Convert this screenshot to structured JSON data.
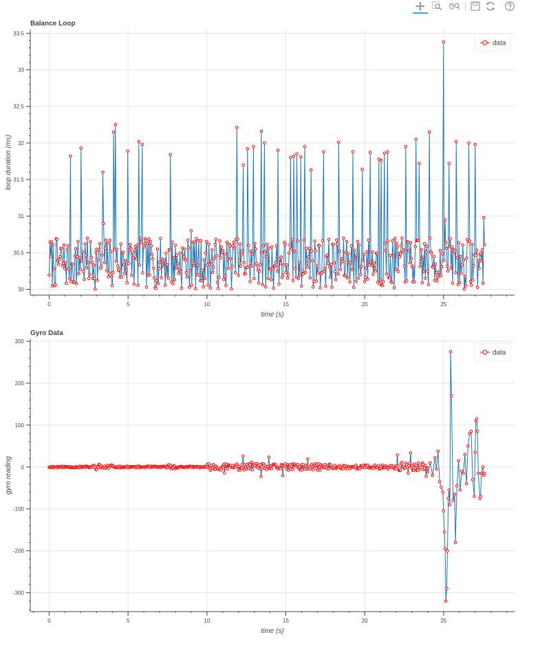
{
  "toolbar": {
    "tools": [
      {
        "name": "pan-tool",
        "label": "Pan",
        "active": true
      },
      {
        "name": "box-zoom-tool",
        "label": "Box Zoom",
        "active": false
      },
      {
        "name": "wheel-zoom-tool",
        "label": "Wheel Zoom",
        "active": false
      },
      {
        "name": "save-tool",
        "label": "Save",
        "active": false
      },
      {
        "name": "reset-tool",
        "label": "Reset",
        "active": false
      },
      {
        "name": "help-tool",
        "label": "Help",
        "active": false
      }
    ]
  },
  "colors": {
    "line": "#1f77b4",
    "marker": "#ff0000",
    "grid": "#e5e5e5",
    "axis": "#444444",
    "active_tool": "#26aae1"
  },
  "chart_data": [
    {
      "type": "line",
      "title": "Balance Loop",
      "xlabel": "time (s)",
      "ylabel": "loop duration (ms)",
      "xlim": [
        -1.2,
        29.5
      ],
      "ylim": [
        29.92,
        33.55
      ],
      "xticks": [
        0,
        5,
        10,
        15,
        20,
        25
      ],
      "yticks": [
        30,
        30.5,
        31,
        31.5,
        32,
        32.5,
        33,
        33.5
      ],
      "legend": {
        "label": "data",
        "position": "top-right"
      },
      "grid": true,
      "series": [
        {
          "name": "data",
          "generated": {
            "count": 560,
            "x_start": 0,
            "x_end": 27.6,
            "base_min": 30.0,
            "base_max": 30.7,
            "seed": 7
          }
        }
      ],
      "peaks": [
        {
          "x": 0.15,
          "y": 30.65
        },
        {
          "x": 1.35,
          "y": 31.82
        },
        {
          "x": 2.02,
          "y": 31.93
        },
        {
          "x": 3.4,
          "y": 31.6
        },
        {
          "x": 3.45,
          "y": 30.9
        },
        {
          "x": 4.08,
          "y": 32.15
        },
        {
          "x": 4.2,
          "y": 32.25
        },
        {
          "x": 4.98,
          "y": 31.89
        },
        {
          "x": 5.68,
          "y": 32.02
        },
        {
          "x": 5.9,
          "y": 31.98
        },
        {
          "x": 7.68,
          "y": 31.84
        },
        {
          "x": 9.0,
          "y": 30.8
        },
        {
          "x": 11.9,
          "y": 32.21
        },
        {
          "x": 12.3,
          "y": 31.7
        },
        {
          "x": 12.57,
          "y": 31.92
        },
        {
          "x": 12.95,
          "y": 31.95
        },
        {
          "x": 13.45,
          "y": 32.16
        },
        {
          "x": 13.65,
          "y": 32.0
        },
        {
          "x": 14.5,
          "y": 31.9
        },
        {
          "x": 15.3,
          "y": 31.8
        },
        {
          "x": 15.5,
          "y": 31.82
        },
        {
          "x": 15.7,
          "y": 31.85
        },
        {
          "x": 15.95,
          "y": 31.81
        },
        {
          "x": 16.2,
          "y": 31.95
        },
        {
          "x": 16.6,
          "y": 31.63
        },
        {
          "x": 17.4,
          "y": 31.88
        },
        {
          "x": 18.35,
          "y": 32.01
        },
        {
          "x": 19.25,
          "y": 31.88
        },
        {
          "x": 19.85,
          "y": 31.64
        },
        {
          "x": 20.35,
          "y": 31.87
        },
        {
          "x": 20.9,
          "y": 31.78
        },
        {
          "x": 21.05,
          "y": 31.76
        },
        {
          "x": 21.25,
          "y": 31.86
        },
        {
          "x": 21.45,
          "y": 31.88
        },
        {
          "x": 22.6,
          "y": 31.95
        },
        {
          "x": 23.25,
          "y": 32.05
        },
        {
          "x": 23.45,
          "y": 31.72
        },
        {
          "x": 24.1,
          "y": 32.15
        },
        {
          "x": 25.0,
          "y": 33.38
        },
        {
          "x": 25.1,
          "y": 30.95
        },
        {
          "x": 25.35,
          "y": 31.72
        },
        {
          "x": 25.8,
          "y": 32.02
        },
        {
          "x": 26.6,
          "y": 32.0
        },
        {
          "x": 27.0,
          "y": 31.98
        },
        {
          "x": 27.55,
          "y": 30.98
        }
      ]
    },
    {
      "type": "line",
      "title": "Gyro Data",
      "xlabel": "time (s)",
      "ylabel": "gyro reading",
      "xlim": [
        -1.2,
        29.5
      ],
      "ylim": [
        -345,
        305
      ],
      "xticks": [
        0,
        5,
        10,
        15,
        20,
        25
      ],
      "yticks": [
        -300,
        -200,
        -100,
        0,
        100,
        200,
        300
      ],
      "legend": {
        "label": "data",
        "position": "top-right"
      },
      "grid": true,
      "series": [
        {
          "name": "data",
          "generated": {
            "count": 560,
            "x_start": 0,
            "x_end": 27.6,
            "seed": 11
          }
        }
      ],
      "tail": [
        [
          24.0,
          -12
        ],
        [
          24.15,
          10
        ],
        [
          24.3,
          -20
        ],
        [
          24.45,
          22
        ],
        [
          24.55,
          -5
        ],
        [
          24.65,
          38
        ],
        [
          24.75,
          -35
        ],
        [
          24.85,
          -48
        ],
        [
          24.95,
          -60
        ],
        [
          25.0,
          -105
        ],
        [
          25.05,
          -155
        ],
        [
          25.1,
          -195
        ],
        [
          25.15,
          -320
        ],
        [
          25.2,
          -290
        ],
        [
          25.25,
          -200
        ],
        [
          25.3,
          -75
        ],
        [
          25.35,
          -55
        ],
        [
          25.4,
          -90
        ],
        [
          25.45,
          275
        ],
        [
          25.5,
          170
        ],
        [
          25.6,
          -80
        ],
        [
          25.7,
          -65
        ],
        [
          25.75,
          -180
        ],
        [
          25.85,
          -45
        ],
        [
          25.95,
          15
        ],
        [
          26.05,
          -55
        ],
        [
          26.15,
          -10
        ],
        [
          26.25,
          -15
        ],
        [
          26.35,
          30
        ],
        [
          26.45,
          -40
        ],
        [
          26.55,
          50
        ],
        [
          26.65,
          80
        ],
        [
          26.75,
          85
        ],
        [
          26.85,
          -30
        ],
        [
          26.95,
          -70
        ],
        [
          27.0,
          35
        ],
        [
          27.05,
          110
        ],
        [
          27.1,
          115
        ],
        [
          27.15,
          85
        ],
        [
          27.2,
          -15
        ],
        [
          27.3,
          -75
        ],
        [
          27.35,
          -70
        ],
        [
          27.4,
          -15
        ],
        [
          27.5,
          0
        ],
        [
          27.55,
          -20
        ],
        [
          27.6,
          -15
        ]
      ]
    }
  ]
}
